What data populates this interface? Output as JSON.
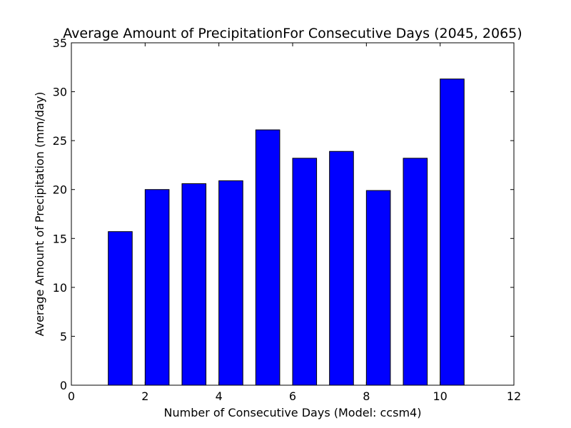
{
  "chart_data": {
    "type": "bar",
    "title": "Average Amount of PrecipitationFor Consecutive Days  (2045, 2065)",
    "xlabel": "Number of Consecutive Days (Model: ccsm4)",
    "ylabel": "Average Amount of Precipitation (mm/day)",
    "x": [
      1,
      2,
      3,
      4,
      5,
      6,
      7,
      8,
      9,
      10
    ],
    "values": [
      15.7,
      20.0,
      20.6,
      20.9,
      26.1,
      23.2,
      23.9,
      19.9,
      23.2,
      31.3
    ],
    "bar_width": 0.65,
    "xlim": [
      0,
      12
    ],
    "ylim": [
      0,
      35
    ],
    "xticks": [
      0,
      2,
      4,
      6,
      8,
      10,
      12
    ],
    "yticks": [
      0,
      5,
      10,
      15,
      20,
      25,
      30,
      35
    ],
    "grid": false,
    "colors": {
      "bar_fill": "#0000ff",
      "bar_edge": "#000000",
      "axes": "#000000"
    }
  }
}
